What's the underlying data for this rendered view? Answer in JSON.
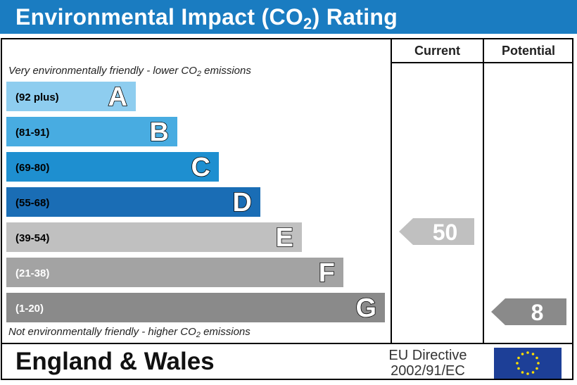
{
  "header": {
    "title_pre": "Environmental Impact (CO",
    "title_sub": "2",
    "title_post": ") Rating"
  },
  "columns": {
    "current": "Current",
    "potential": "Potential"
  },
  "notes": {
    "top_pre": "Very environmentally friendly - lower CO",
    "top_sub": "2",
    "top_post": " emissions",
    "bottom_pre": "Not environmentally friendly - higher CO",
    "bottom_sub": "2",
    "bottom_post": " emissions"
  },
  "footer": {
    "region": "England & Wales",
    "directive_line1": "EU Directive",
    "directive_line2": "2002/91/EC",
    "flag_icon": "eu-flag-icon"
  },
  "chart_data": {
    "type": "bar",
    "bands": [
      {
        "letter": "A",
        "range": "(92 plus)",
        "color": "#8ecdef",
        "range_text_color": "#000000"
      },
      {
        "letter": "B",
        "range": "(81-91)",
        "color": "#48ace1",
        "range_text_color": "#000000"
      },
      {
        "letter": "C",
        "range": "(69-80)",
        "color": "#1e8fd0",
        "range_text_color": "#000000"
      },
      {
        "letter": "D",
        "range": "(55-68)",
        "color": "#1a6db5",
        "range_text_color": "#000000"
      },
      {
        "letter": "E",
        "range": "(39-54)",
        "color": "#c0c0c0",
        "range_text_color": "#000000"
      },
      {
        "letter": "F",
        "range": "(21-38)",
        "color": "#a3a3a3",
        "range_text_color": "#ffffff"
      },
      {
        "letter": "G",
        "range": "(1-20)",
        "color": "#8a8a8a",
        "range_text_color": "#ffffff"
      }
    ],
    "current": {
      "value": 50,
      "band": "E",
      "color": "#c0c0c0"
    },
    "potential": {
      "value": 8,
      "band": "G",
      "color": "#8a8a8a"
    }
  }
}
